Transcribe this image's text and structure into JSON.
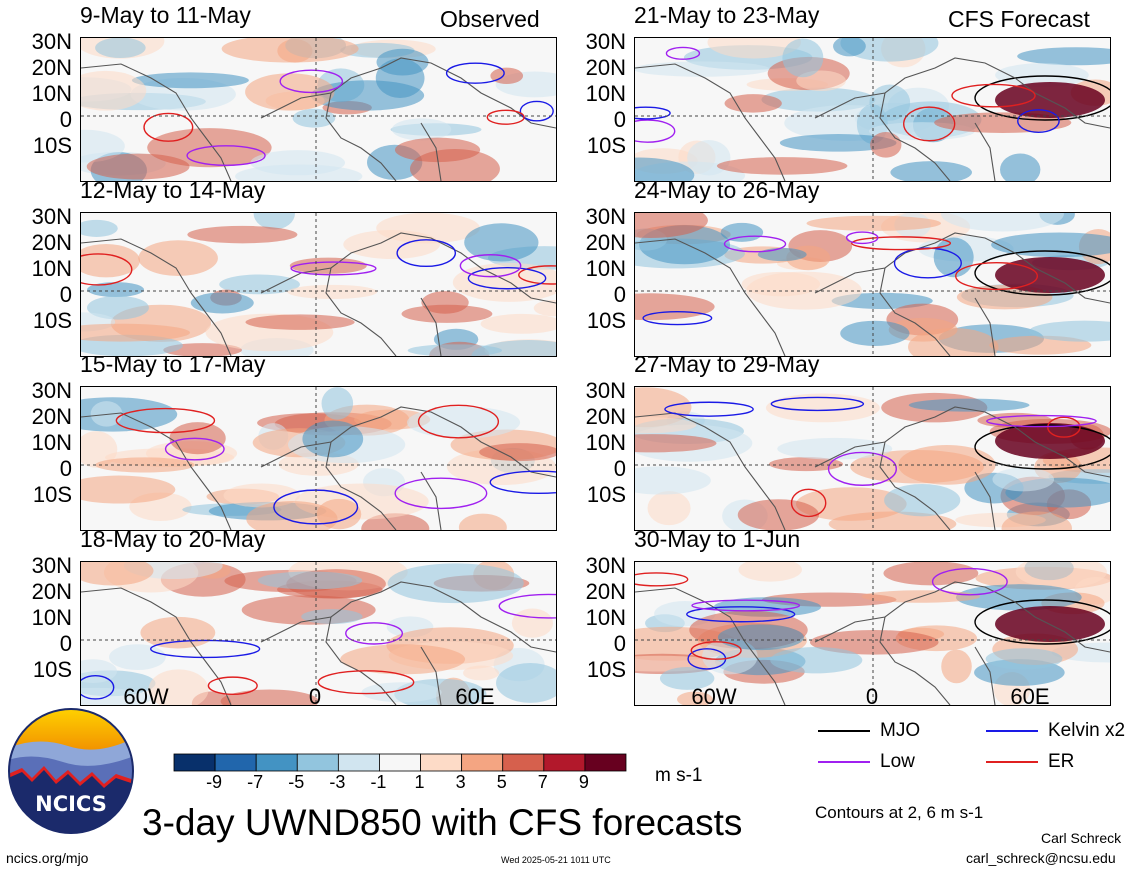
{
  "observed_label": "Observed",
  "forecast_label": "CFS Forecast",
  "lat_labels": [
    "30N",
    "20N",
    "10N",
    "0",
    "10S"
  ],
  "lon_labels": [
    "60W",
    "0",
    "60E"
  ],
  "panels_left": [
    {
      "title": "9-May to 11-May"
    },
    {
      "title": "12-May to 14-May"
    },
    {
      "title": "15-May to 17-May"
    },
    {
      "title": "18-May to 20-May"
    }
  ],
  "panels_right": [
    {
      "title": "21-May to 23-May"
    },
    {
      "title": "24-May to 26-May"
    },
    {
      "title": "27-May to 29-May"
    },
    {
      "title": "30-May to 1-Jun"
    }
  ],
  "colorbar": {
    "labels": [
      "-9",
      "-7",
      "-5",
      "-3",
      "-1",
      "1",
      "3",
      "5",
      "7",
      "9"
    ],
    "colors": [
      "#08306b",
      "#2166ac",
      "#4393c3",
      "#92c5de",
      "#d1e5f0",
      "#f7f7f7",
      "#fddbc7",
      "#f4a582",
      "#d6604d",
      "#b2182b",
      "#67001f"
    ],
    "units": "m s-1"
  },
  "legend": {
    "mjo": {
      "label": "MJO",
      "color": "#000000"
    },
    "kelvin": {
      "label": "Kelvin x2",
      "color": "#1a1ae6"
    },
    "low": {
      "label": "Low",
      "color": "#a020f0"
    },
    "er": {
      "label": "ER",
      "color": "#e02020"
    },
    "contours_note": "Contours at 2, 6 m s-1"
  },
  "main_title": "3-day UWND850 with CFS forecasts",
  "org": "NCICS",
  "url": "ncics.org/mjo",
  "timestamp": "Wed 2025-05-21 1011 UTC",
  "author": "Carl Schreck",
  "email": "carl_schreck@ncsu.edu"
}
